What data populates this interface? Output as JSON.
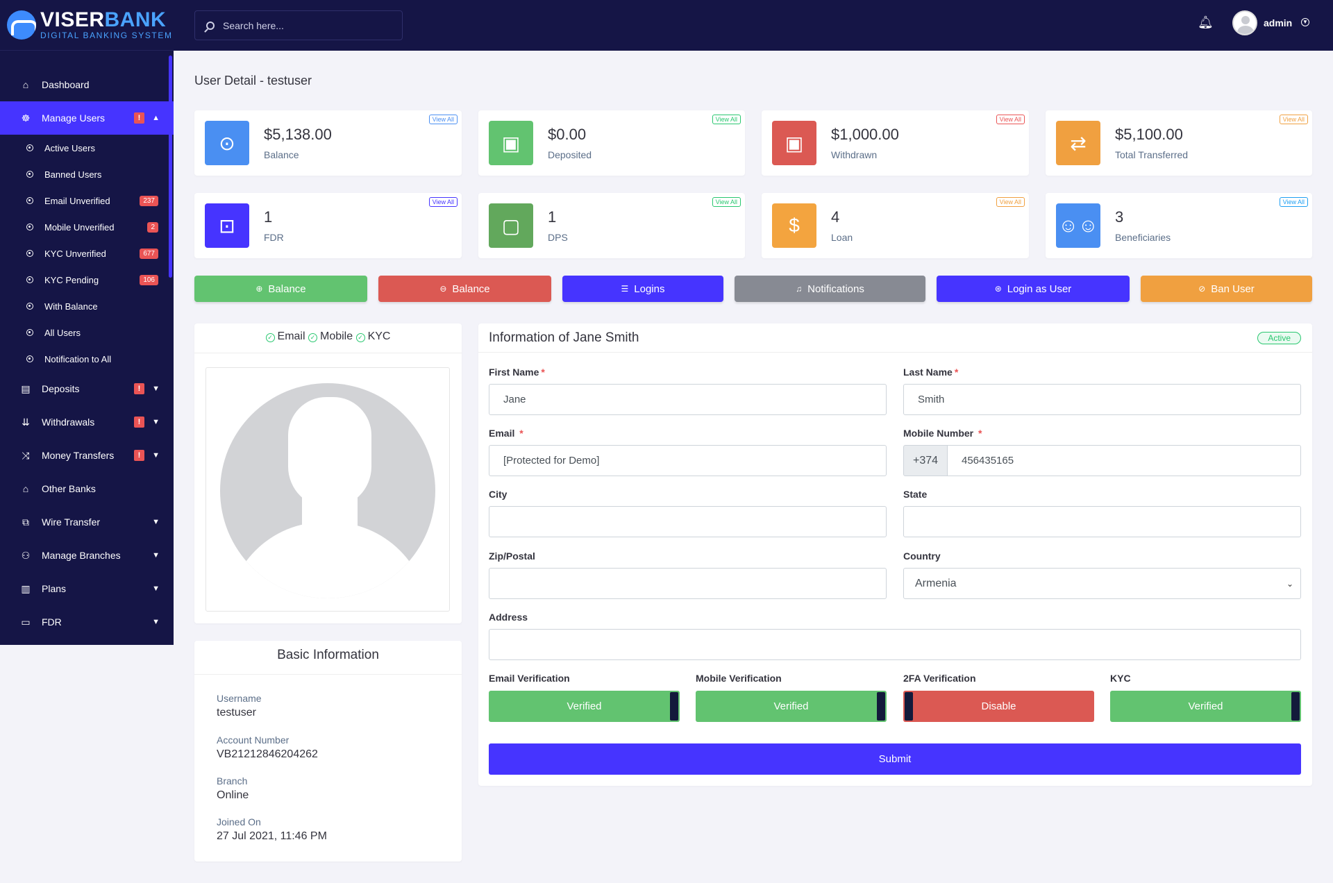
{
  "brand": {
    "name_part1": "VISER",
    "name_part2": "BANK",
    "tagline": "DIGITAL BANKING SYSTEM"
  },
  "header": {
    "search_placeholder": "Search here...",
    "user_name": "admin"
  },
  "sidebar": {
    "items": [
      {
        "label": "Dashboard",
        "icon": "home-icon"
      },
      {
        "label": "Manage Users",
        "icon": "users-icon",
        "warn": "!"
      },
      {
        "label": "Deposits",
        "icon": "deposit-icon",
        "warn": "!"
      },
      {
        "label": "Withdrawals",
        "icon": "withdraw-icon",
        "warn": "!"
      },
      {
        "label": "Money Transfers",
        "icon": "shuffle-icon",
        "warn": "!"
      },
      {
        "label": "Other Banks",
        "icon": "bank-icon"
      },
      {
        "label": "Wire Transfer",
        "icon": "wire-icon"
      },
      {
        "label": "Manage Branches",
        "icon": "branch-icon"
      },
      {
        "label": "Plans",
        "icon": "chart-icon"
      },
      {
        "label": "FDR",
        "icon": "fdr-icon"
      }
    ],
    "manage_users_sub": [
      {
        "label": "Active Users"
      },
      {
        "label": "Banned Users"
      },
      {
        "label": "Email Unverified",
        "count": "237"
      },
      {
        "label": "Mobile Unverified",
        "count": "2"
      },
      {
        "label": "KYC Unverified",
        "count": "677"
      },
      {
        "label": "KYC Pending",
        "count": "106"
      },
      {
        "label": "With Balance"
      },
      {
        "label": "All Users"
      },
      {
        "label": "Notification to All"
      }
    ]
  },
  "page": {
    "title": "User Detail - testuser"
  },
  "widgets": [
    {
      "amount": "$5,138.00",
      "label": "Balance",
      "view_all": "View All",
      "color": "#4a8ff2"
    },
    {
      "amount": "$0.00",
      "label": "Deposited",
      "view_all": "View All",
      "color": "#62c370"
    },
    {
      "amount": "$1,000.00",
      "label": "Withdrawn",
      "view_all": "View All",
      "color": "#db5953"
    },
    {
      "amount": "$5,100.00",
      "label": "Total Transferred",
      "view_all": "View All",
      "color": "#f0a040"
    },
    {
      "amount": "1",
      "label": "FDR",
      "view_all": "View All",
      "color": "#4634ff"
    },
    {
      "amount": "1",
      "label": "DPS",
      "view_all": "View All",
      "color": "#62a85c"
    },
    {
      "amount": "4",
      "label": "Loan",
      "view_all": "View All",
      "color": "#f3a43f"
    },
    {
      "amount": "3",
      "label": "Beneficiaries",
      "view_all": "View All",
      "color": "#4a8ff2"
    }
  ],
  "actions": [
    {
      "label": "Balance",
      "color": "#62c370"
    },
    {
      "label": "Balance",
      "color": "#db5953"
    },
    {
      "label": "Logins",
      "color": "#4634ff"
    },
    {
      "label": "Notifications",
      "color": "#878a93"
    },
    {
      "label": "Login as User",
      "color": "#4634ff"
    },
    {
      "label": "Ban User",
      "color": "#f0a040"
    }
  ],
  "verifications": {
    "email": "Email",
    "mobile": "Mobile",
    "kyc": "KYC"
  },
  "basic_info": {
    "title": "Basic Information",
    "username_label": "Username",
    "username": "testuser",
    "account_label": "Account Number",
    "account": "VB21212846204262",
    "branch_label": "Branch",
    "branch": "Online",
    "joined_label": "Joined On",
    "joined": "27 Jul 2021, 11:46 PM"
  },
  "info": {
    "title": "Information of Jane Smith",
    "status": "Active",
    "first_name_label": "First Name",
    "first_name": "Jane",
    "last_name_label": "Last Name",
    "last_name": "Smith",
    "email_label": "Email",
    "email": "[Protected for Demo]",
    "mobile_label": "Mobile Number",
    "mobile_prefix": "+374",
    "mobile": "456435165",
    "city_label": "City",
    "city": "",
    "state_label": "State",
    "state": "",
    "zip_label": "Zip/Postal",
    "zip": "",
    "country_label": "Country",
    "country": "Armenia",
    "address_label": "Address",
    "address": "",
    "email_verif_label": "Email Verification",
    "email_verif": "Verified",
    "mobile_verif_label": "Mobile Verification",
    "mobile_verif": "Verified",
    "twofa_label": "2FA Verification",
    "twofa": "Disable",
    "kyc_label": "KYC",
    "kyc": "Verified",
    "submit": "Submit"
  }
}
